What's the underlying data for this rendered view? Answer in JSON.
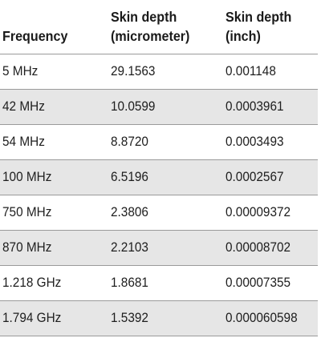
{
  "headers": {
    "frequency": [
      "Frequency"
    ],
    "skin_depth_um": [
      "Skin depth",
      "(micrometer)"
    ],
    "skin_depth_in": [
      "Skin depth",
      "(inch)"
    ]
  },
  "rows": [
    {
      "frequency": "5 MHz",
      "skin_depth_um": "29.1563",
      "skin_depth_in": "0.001148"
    },
    {
      "frequency": "42 MHz",
      "skin_depth_um": "10.0599",
      "skin_depth_in": "0.0003961"
    },
    {
      "frequency": "54 MHz",
      "skin_depth_um": "8.8720",
      "skin_depth_in": "0.0003493"
    },
    {
      "frequency": "100 MHz",
      "skin_depth_um": "6.5196",
      "skin_depth_in": "0.0002567"
    },
    {
      "frequency": "750 MHz",
      "skin_depth_um": "2.3806",
      "skin_depth_in": "0.00009372"
    },
    {
      "frequency": "870 MHz",
      "skin_depth_um": "2.2103",
      "skin_depth_in": "0.00008702"
    },
    {
      "frequency": "1.218 GHz",
      "skin_depth_um": "1.8681",
      "skin_depth_in": "0.00007355"
    },
    {
      "frequency": "1.794 GHz",
      "skin_depth_um": "1.5392",
      "skin_depth_in": "0.000060598"
    }
  ]
}
